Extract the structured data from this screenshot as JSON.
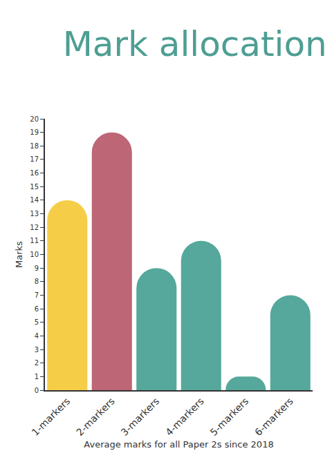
{
  "chart_data": {
    "type": "bar",
    "title": "Mark allocation",
    "categories": [
      "1-markers",
      "2-markers",
      "3-markers",
      "4-markers",
      "5-markers",
      "6-markers"
    ],
    "values": [
      14,
      19,
      9,
      11,
      1,
      7
    ],
    "colors": [
      "#f5cd47",
      "#bd6676",
      "#55a89b",
      "#55a89b",
      "#55a89b",
      "#55a89b"
    ],
    "x_label": "Average marks for all Paper 2s since 2018",
    "y_label": "Marks",
    "ylim": [
      0,
      20
    ],
    "yticks": [
      0,
      1,
      2,
      3,
      4,
      5,
      6,
      7,
      8,
      9,
      10,
      11,
      12,
      13,
      14,
      15,
      16,
      17,
      18,
      19,
      20
    ],
    "grid": false
  }
}
